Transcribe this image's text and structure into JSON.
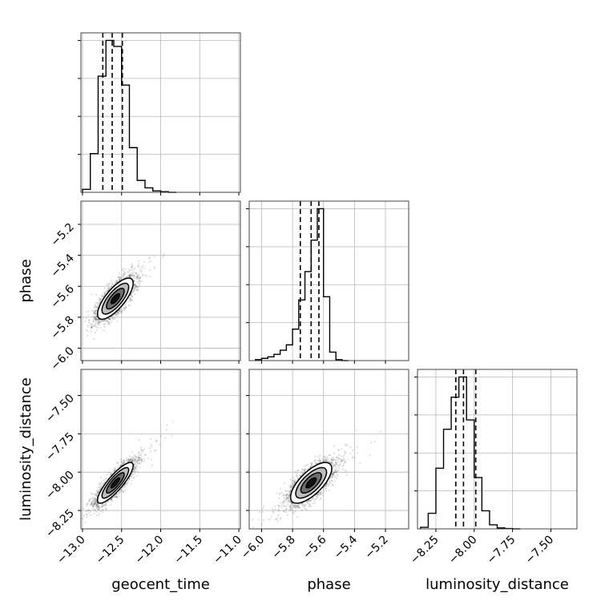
{
  "chart_data": {
    "type": "corner",
    "parameters": [
      "geocent_time",
      "phase",
      "luminosity_distance"
    ],
    "axis_labels": {
      "geocent_time": "geocent_time",
      "phase": "phase",
      "luminosity_distance": "luminosity_distance"
    },
    "ranges": {
      "geocent_time": [
        -13.02,
        -10.98
      ],
      "phase": [
        -6.08,
        -5.05
      ],
      "luminosity_distance": [
        -8.37,
        -7.33
      ]
    },
    "ticks": {
      "geocent_time": [
        -13.0,
        -12.5,
        -12.0,
        -11.5,
        -11.0
      ],
      "phase": [
        -6.0,
        -5.8,
        -5.6,
        -5.4,
        -5.2
      ],
      "luminosity_distance": [
        -8.25,
        -8.0,
        -7.75,
        -7.5
      ]
    },
    "tick_labels": {
      "geocent_time": [
        "−13.0",
        "−12.5",
        "−12.0",
        "−11.5",
        "−11.0"
      ],
      "phase": [
        "−6.0",
        "−5.8",
        "−5.6",
        "−5.4",
        "−5.2"
      ],
      "luminosity_distance": [
        "−8.25",
        "−8.00",
        "−7.75",
        "−7.50"
      ]
    },
    "histograms": {
      "geocent_time": {
        "bin_edges": [
          -13.0,
          -12.9,
          -12.8,
          -12.7,
          -12.6,
          -12.5,
          -12.4,
          -12.3,
          -12.2,
          -12.1,
          -12.0,
          -11.9,
          -11.8
        ],
        "counts": [
          0.1,
          1.3,
          3.9,
          5.1,
          4.9,
          3.6,
          1.5,
          0.4,
          0.15,
          0.05,
          0.02,
          0.0
        ]
      },
      "phase": {
        "bin_edges": [
          -6.04,
          -6.0,
          -5.96,
          -5.92,
          -5.88,
          -5.84,
          -5.8,
          -5.76,
          -5.72,
          -5.68,
          -5.64,
          -5.6,
          -5.56,
          -5.52,
          -5.48,
          -5.44
        ],
        "counts": [
          0.03,
          0.07,
          0.12,
          0.2,
          0.33,
          0.5,
          1.0,
          1.93,
          2.83,
          3.83,
          4.83,
          2.03,
          0.27,
          0.03,
          0.0
        ]
      },
      "luminosity_distance": {
        "bin_edges": [
          -8.35,
          -8.3,
          -8.25,
          -8.2,
          -8.15,
          -8.1,
          -8.05,
          -8.0,
          -7.95,
          -7.9,
          -7.85,
          -7.8,
          -7.75,
          -7.7
        ],
        "counts": [
          0.05,
          0.5,
          1.95,
          3.2,
          4.23,
          4.88,
          3.5,
          1.65,
          0.58,
          0.13,
          0.03,
          0.01,
          0.0
        ]
      }
    },
    "quantiles": {
      "geocent_time": [
        -12.74,
        -12.62,
        -12.49
      ],
      "phase": [
        -5.75,
        -5.68,
        -5.63
      ],
      "luminosity_distance": [
        -8.12,
        -8.07,
        -7.99
      ]
    },
    "correlations": {
      "geocent_time|phase": 0.75,
      "geocent_time|luminosity_distance": 0.85,
      "phase|luminosity_distance": 0.7
    },
    "centers": {
      "geocent_time": -12.58,
      "phase": -5.68,
      "luminosity_distance": -8.07
    },
    "spreads": {
      "geocent_time": 0.12,
      "phase": 0.07,
      "luminosity_distance": 0.07
    },
    "contour_levels_sigma": [
      0.5,
      1.0,
      1.5,
      2.0
    ],
    "grid": true
  }
}
